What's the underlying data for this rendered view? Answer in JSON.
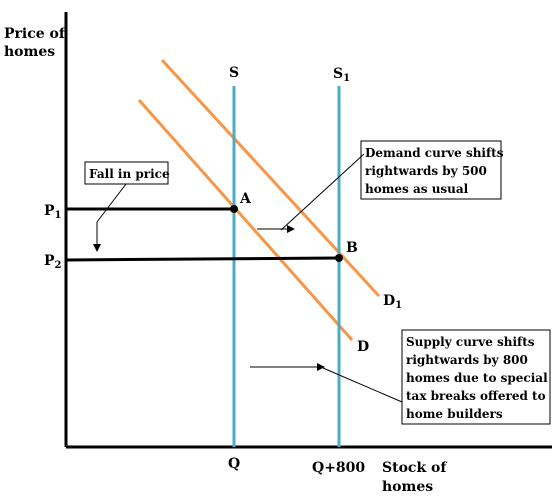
{
  "axes": {
    "y_label_line1": "Price of",
    "y_label_line2": "homes",
    "x_label_line1": "Stock of",
    "x_label_line2": "homes"
  },
  "prices": {
    "p1": "P",
    "p1_sub": "1",
    "p2": "P",
    "p2_sub": "2"
  },
  "quantities": {
    "q": "Q",
    "q2": "Q+800"
  },
  "curves": {
    "supply": "S",
    "supply_shift": "S",
    "supply_shift_sub": "1",
    "demand": "D",
    "demand_shift": "D",
    "demand_shift_sub": "1"
  },
  "points": {
    "a": "A",
    "b": "B"
  },
  "annotations": {
    "fall_in_price": "Fall in price",
    "demand_box": [
      "Demand curve shifts",
      "rightwards  by 500",
      "homes as usual"
    ],
    "supply_box": [
      "Supply curve shifts",
      "rightwards by 800",
      "homes due to special",
      "tax breaks offered to",
      "home builders"
    ]
  },
  "colors": {
    "supply": "#4bacc6",
    "demand": "#f79646",
    "axis": "#000000",
    "price_line": "#000000"
  }
}
